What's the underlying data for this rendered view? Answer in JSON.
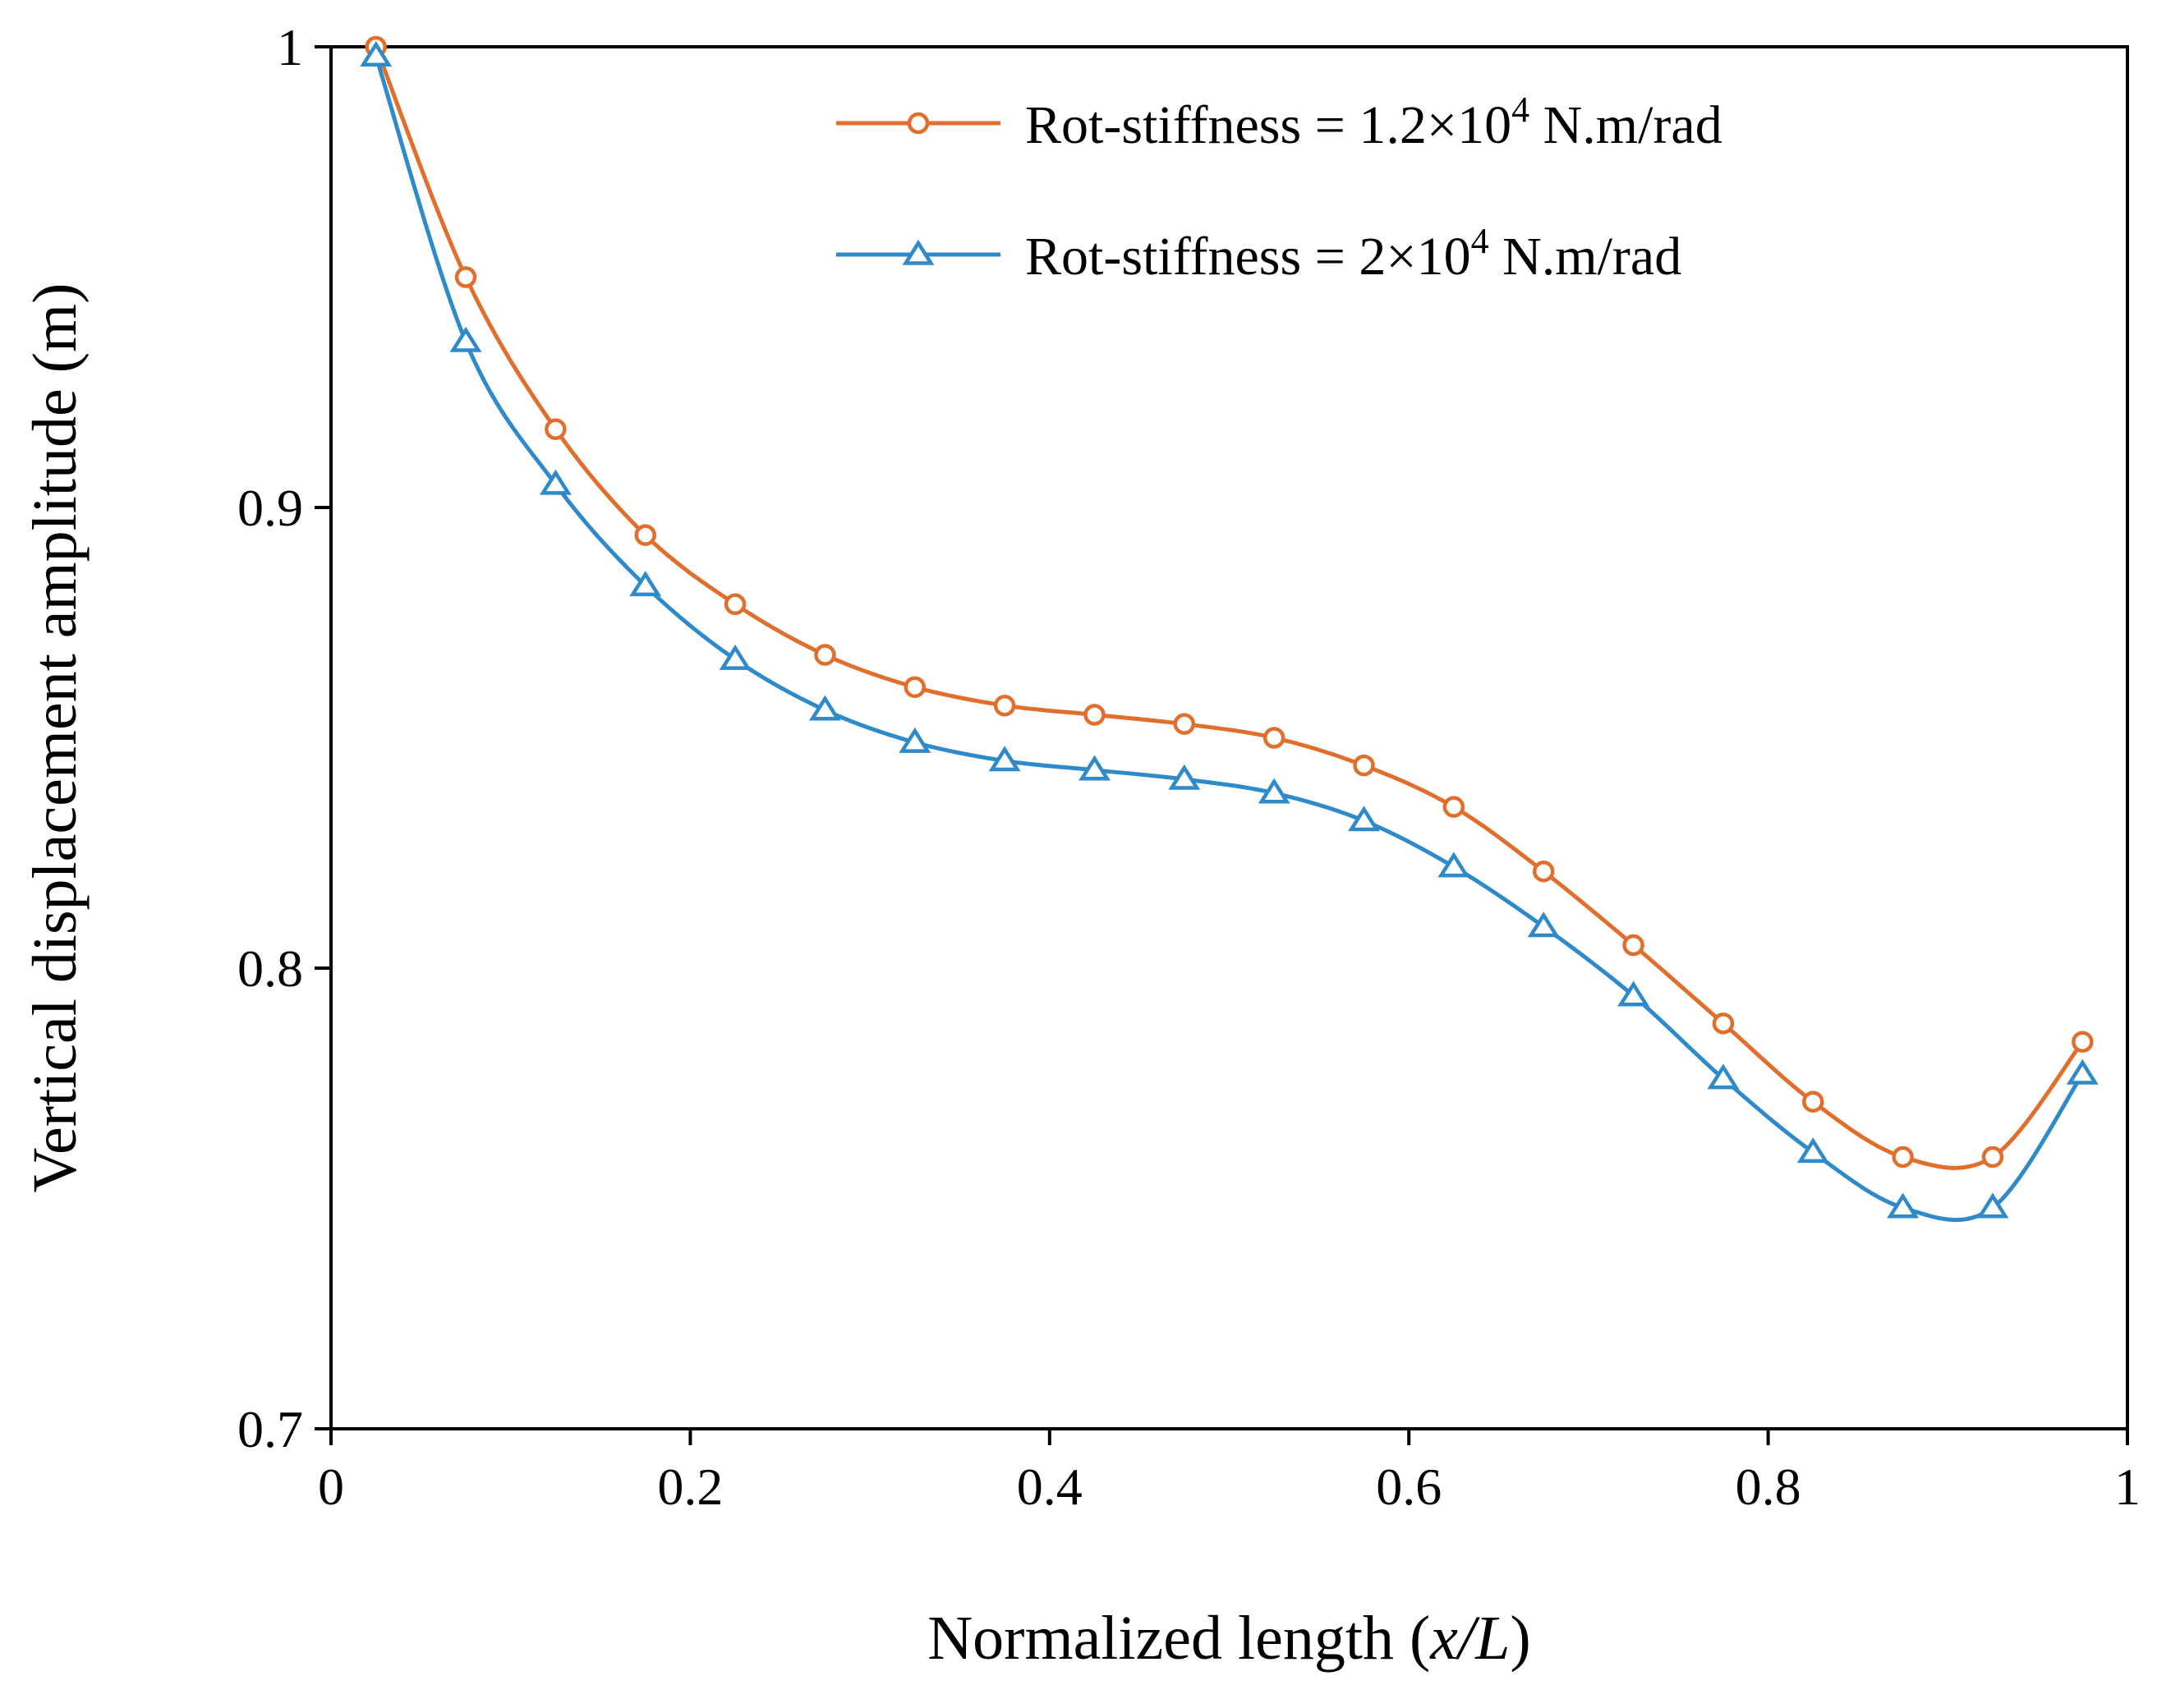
{
  "chart_data": {
    "type": "line",
    "title": "",
    "xlabel": "Normalized length",
    "xlabel_var": "x/L",
    "ylabel": "Vertical displacement amplitude (m)",
    "xlim": [
      0,
      1
    ],
    "ylim": [
      0.7,
      1
    ],
    "xticks": [
      0,
      0.2,
      0.4,
      0.6,
      0.8,
      1
    ],
    "xtick_labels": [
      "0",
      "0.2",
      "0.4",
      "0.6",
      "0.8",
      "1"
    ],
    "yticks": [
      0.7,
      0.8,
      0.9,
      1
    ],
    "ytick_labels": [
      "0.7",
      "0.8",
      "0.9",
      "1"
    ],
    "grid": false,
    "legend_position": "top-right",
    "x": [
      0.025,
      0.075,
      0.125,
      0.175,
      0.225,
      0.275,
      0.325,
      0.375,
      0.425,
      0.475,
      0.525,
      0.575,
      0.625,
      0.675,
      0.725,
      0.775,
      0.825,
      0.875,
      0.925,
      0.975
    ],
    "series": [
      {
        "name": "Rot-stiffness = 1.2×10⁴ N.m/rad",
        "legend_prefix": "Rot-stiffness = ",
        "legend_base": "1.2×10",
        "legend_exp": "4",
        "legend_unit": " N.m/rad",
        "color": "#E06E2C",
        "marker": "circle",
        "values": [
          1.0,
          0.95,
          0.917,
          0.894,
          0.879,
          0.868,
          0.861,
          0.857,
          0.855,
          0.853,
          0.85,
          0.844,
          0.835,
          0.821,
          0.805,
          0.788,
          0.771,
          0.759,
          0.759,
          0.784
        ]
      },
      {
        "name": "Rot-stiffness = 2×10⁴ N.m/rad",
        "legend_prefix": "Rot-stiffness = ",
        "legend_base": "2×10",
        "legend_exp": "4",
        "legend_unit": " N.m/rad",
        "color": "#2E8AC8",
        "marker": "triangle",
        "values": [
          0.998,
          0.936,
          0.905,
          0.883,
          0.867,
          0.856,
          0.849,
          0.845,
          0.843,
          0.841,
          0.838,
          0.832,
          0.822,
          0.809,
          0.794,
          0.776,
          0.76,
          0.748,
          0.748,
          0.777
        ]
      }
    ]
  }
}
